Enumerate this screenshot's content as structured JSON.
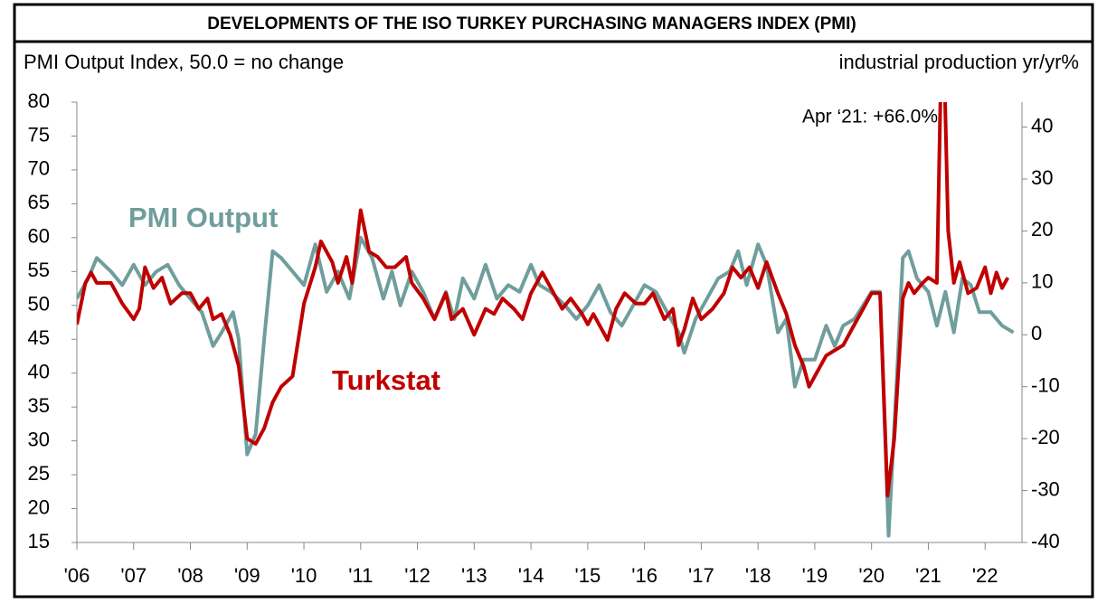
{
  "chart_data": {
    "type": "line",
    "title": "DEVELOPMENTS OF THE ISO TURKEY PURCHASING MANAGERS INDEX (PMI)",
    "y_label": "PMI Output Index, 50.0 = no change",
    "y2_label": "industrial production yr/yr%",
    "annotation": "Apr ‘21: +66.0%",
    "xlim": [
      2006,
      2022.65
    ],
    "xticks": [
      {
        "value": 2006,
        "label": "'06"
      },
      {
        "value": 2007,
        "label": "'07"
      },
      {
        "value": 2008,
        "label": "'08"
      },
      {
        "value": 2009,
        "label": "'09"
      },
      {
        "value": 2010,
        "label": "'10"
      },
      {
        "value": 2011,
        "label": "'11"
      },
      {
        "value": 2012,
        "label": "'12"
      },
      {
        "value": 2013,
        "label": "'13"
      },
      {
        "value": 2014,
        "label": "'14"
      },
      {
        "value": 2015,
        "label": "'15"
      },
      {
        "value": 2016,
        "label": "'16"
      },
      {
        "value": 2017,
        "label": "'17"
      },
      {
        "value": 2018,
        "label": "'18"
      },
      {
        "value": 2019,
        "label": "'19"
      },
      {
        "value": 2020,
        "label": "'20"
      },
      {
        "value": 2021,
        "label": "'21"
      },
      {
        "value": 2022,
        "label": "'22"
      }
    ],
    "ylim": [
      15,
      80
    ],
    "yticks": [
      15,
      20,
      25,
      30,
      35,
      40,
      45,
      50,
      55,
      60,
      65,
      70,
      75,
      80
    ],
    "y2lim": [
      -40,
      44.8
    ],
    "y2ticks": [
      -40,
      -30,
      -20,
      -10,
      0,
      10,
      20,
      30,
      40
    ],
    "series": [
      {
        "name": "PMI Output",
        "color": "#6f9e9c",
        "x": [
          2006.0,
          2006.2,
          2006.35,
          2006.6,
          2006.8,
          2007.0,
          2007.2,
          2007.4,
          2007.6,
          2007.8,
          2008.0,
          2008.2,
          2008.4,
          2008.55,
          2008.75,
          2008.85,
          2009.0,
          2009.15,
          2009.3,
          2009.45,
          2009.6,
          2009.8,
          2010.0,
          2010.2,
          2010.4,
          2010.6,
          2010.8,
          2011.0,
          2011.2,
          2011.4,
          2011.55,
          2011.7,
          2011.9,
          2012.1,
          2012.3,
          2012.5,
          2012.65,
          2012.8,
          2013.0,
          2013.2,
          2013.4,
          2013.6,
          2013.8,
          2014.0,
          2014.15,
          2014.35,
          2014.6,
          2014.8,
          2015.0,
          2015.2,
          2015.4,
          2015.6,
          2015.8,
          2016.0,
          2016.2,
          2016.4,
          2016.6,
          2016.7,
          2016.9,
          2017.1,
          2017.3,
          2017.5,
          2017.65,
          2017.8,
          2018.0,
          2018.15,
          2018.35,
          2018.5,
          2018.65,
          2018.8,
          2019.0,
          2019.2,
          2019.35,
          2019.5,
          2019.7,
          2019.85,
          2020.0,
          2020.15,
          2020.3,
          2020.45,
          2020.55,
          2020.65,
          2020.8,
          2021.0,
          2021.15,
          2021.3,
          2021.45,
          2021.6,
          2021.75,
          2021.9,
          2022.1,
          2022.3,
          2022.5
        ],
        "values": [
          51,
          54,
          57,
          55,
          53,
          56,
          53,
          55,
          56,
          53,
          51,
          49,
          44,
          46,
          49,
          45,
          28,
          31,
          45,
          58,
          57,
          55,
          53,
          59,
          52,
          55,
          51,
          60,
          57,
          51,
          55,
          50,
          55,
          52,
          48,
          52,
          48,
          54,
          51,
          56,
          51,
          53,
          52,
          56,
          53,
          52,
          50,
          48,
          50,
          53,
          49,
          47,
          50,
          53,
          52,
          49,
          46,
          43,
          48,
          51,
          54,
          55,
          58,
          53,
          59,
          56,
          46,
          48,
          38,
          42,
          42,
          47,
          44,
          47,
          48,
          50,
          52,
          52,
          16,
          40,
          57,
          58,
          54,
          52,
          47,
          52,
          46,
          54,
          53,
          49,
          49,
          47,
          46
        ]
      },
      {
        "name": "Turkstat",
        "color": "#c00000",
        "axis": "y2",
        "x": [
          2006.0,
          2006.15,
          2006.25,
          2006.35,
          2006.6,
          2006.8,
          2007.0,
          2007.1,
          2007.2,
          2007.35,
          2007.5,
          2007.65,
          2007.85,
          2008.0,
          2008.15,
          2008.3,
          2008.4,
          2008.55,
          2008.7,
          2008.85,
          2009.0,
          2009.15,
          2009.3,
          2009.45,
          2009.6,
          2009.8,
          2010.0,
          2010.2,
          2010.3,
          2010.5,
          2010.6,
          2010.75,
          2010.85,
          2011.0,
          2011.15,
          2011.3,
          2011.45,
          2011.6,
          2011.8,
          2011.9,
          2012.1,
          2012.3,
          2012.5,
          2012.6,
          2012.8,
          2013.0,
          2013.2,
          2013.35,
          2013.5,
          2013.7,
          2013.85,
          2014.0,
          2014.2,
          2014.35,
          2014.55,
          2014.7,
          2014.9,
          2015.0,
          2015.1,
          2015.2,
          2015.35,
          2015.5,
          2015.65,
          2015.85,
          2016.0,
          2016.15,
          2016.35,
          2016.5,
          2016.6,
          2016.7,
          2016.85,
          2017.0,
          2017.2,
          2017.4,
          2017.55,
          2017.7,
          2017.85,
          2018.0,
          2018.15,
          2018.35,
          2018.5,
          2018.65,
          2018.8,
          2018.9,
          2019.1,
          2019.2,
          2019.35,
          2019.5,
          2019.65,
          2019.85,
          2020.0,
          2020.15,
          2020.28,
          2020.4,
          2020.55,
          2020.65,
          2020.75,
          2020.9,
          2021.0,
          2021.15,
          2021.25,
          2021.35,
          2021.45,
          2021.55,
          2021.7,
          2021.85,
          2022.0,
          2022.1,
          2022.2,
          2022.3,
          2022.4
        ],
        "values": [
          2,
          10,
          12,
          10,
          10,
          6,
          3,
          5,
          13,
          9,
          11,
          6,
          8,
          8,
          5,
          7,
          3,
          4,
          0,
          -6,
          -20,
          -21,
          -18,
          -13,
          -10,
          -8,
          6,
          13,
          18,
          14,
          10,
          15,
          10,
          24,
          16,
          15,
          13,
          13,
          15,
          10,
          7,
          3,
          8,
          3,
          5,
          0,
          5,
          4,
          7,
          5,
          3,
          8,
          12,
          9,
          5,
          7,
          4,
          2,
          4,
          2,
          -1,
          5,
          8,
          6,
          6,
          8,
          3,
          5,
          -2,
          1,
          7,
          3,
          5,
          8,
          13,
          11,
          13,
          9,
          14,
          8,
          4,
          -2,
          -6,
          -10,
          -6,
          -4,
          -3,
          -2,
          1,
          5,
          8,
          8,
          -31,
          -20,
          7,
          10,
          8,
          10,
          11,
          10,
          66,
          20,
          10,
          14,
          8,
          9,
          13,
          8,
          12,
          9,
          11
        ]
      }
    ]
  }
}
